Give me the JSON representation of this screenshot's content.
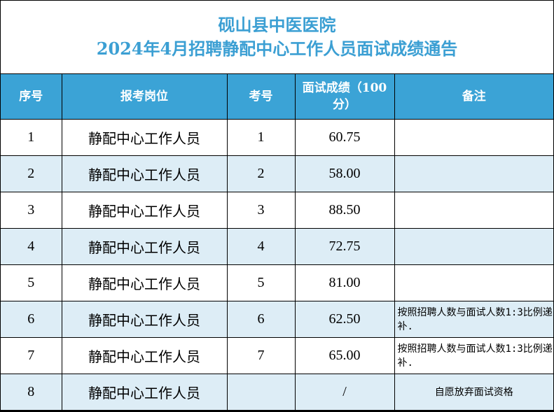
{
  "title": {
    "line1": "砚山县中医医院",
    "line2": "2024年4月招聘静配中心工作人员面试成绩通告"
  },
  "colors": {
    "title": "#3b9fd3",
    "header_bg": "#3ba3d6",
    "alt_row_bg": "#ddedf6"
  },
  "headers": [
    "序号",
    "报考岗位",
    "考号",
    "面试成绩（100分）",
    "备注"
  ],
  "rows": [
    {
      "no": "1",
      "position": "静配中心工作人员",
      "exam_no": "1",
      "score": "60.75",
      "note": ""
    },
    {
      "no": "2",
      "position": "静配中心工作人员",
      "exam_no": "2",
      "score": "58.00",
      "note": ""
    },
    {
      "no": "3",
      "position": "静配中心工作人员",
      "exam_no": "3",
      "score": "88.50",
      "note": ""
    },
    {
      "no": "4",
      "position": "静配中心工作人员",
      "exam_no": "4",
      "score": "72.75",
      "note": ""
    },
    {
      "no": "5",
      "position": "静配中心工作人员",
      "exam_no": "5",
      "score": "81.00",
      "note": ""
    },
    {
      "no": "6",
      "position": "静配中心工作人员",
      "exam_no": "6",
      "score": "62.50",
      "note": "按照招聘人数与面试人数1:3比例递补."
    },
    {
      "no": "7",
      "position": "静配中心工作人员",
      "exam_no": "7",
      "score": "65.00",
      "note": "按照招聘人数与面试人数1:3比例递补."
    },
    {
      "no": "8",
      "position": "静配中心工作人员",
      "exam_no": "",
      "score": "/",
      "note": "自愿放弃面试资格"
    }
  ]
}
